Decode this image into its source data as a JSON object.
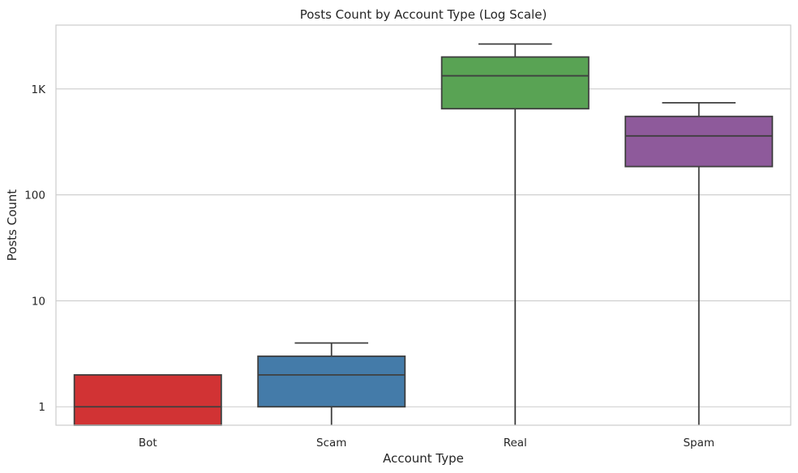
{
  "chart_data": {
    "type": "box",
    "title": "Posts Count by Account Type (Log Scale)",
    "xlabel": "Account Type",
    "ylabel": "Posts Count",
    "yscale": "log",
    "ylim": [
      0.67,
      4000
    ],
    "grid": true,
    "yticks": [
      {
        "value": 1,
        "label": "1"
      },
      {
        "value": 10,
        "label": "10"
      },
      {
        "value": 100,
        "label": "100"
      },
      {
        "value": 1000,
        "label": "1K"
      }
    ],
    "categories": [
      "Bot",
      "Scam",
      "Real",
      "Spam"
    ],
    "boxes": [
      {
        "category": "Bot",
        "color": "#d13334",
        "whisker_low": 0.67,
        "q1": 0.67,
        "median": 1,
        "q3": 2,
        "whisker_high": 2
      },
      {
        "category": "Scam",
        "color": "#447ba9",
        "whisker_low": 0.67,
        "q1": 1,
        "median": 2,
        "q3": 3,
        "whisker_high": 4
      },
      {
        "category": "Real",
        "color": "#59a354",
        "whisker_low": 0.67,
        "q1": 650,
        "median": 1330,
        "q3": 2000,
        "whisker_high": 2650
      },
      {
        "category": "Spam",
        "color": "#8e5a9b",
        "whisker_low": 0.67,
        "q1": 185,
        "median": 360,
        "q3": 550,
        "whisker_high": 740
      }
    ]
  }
}
